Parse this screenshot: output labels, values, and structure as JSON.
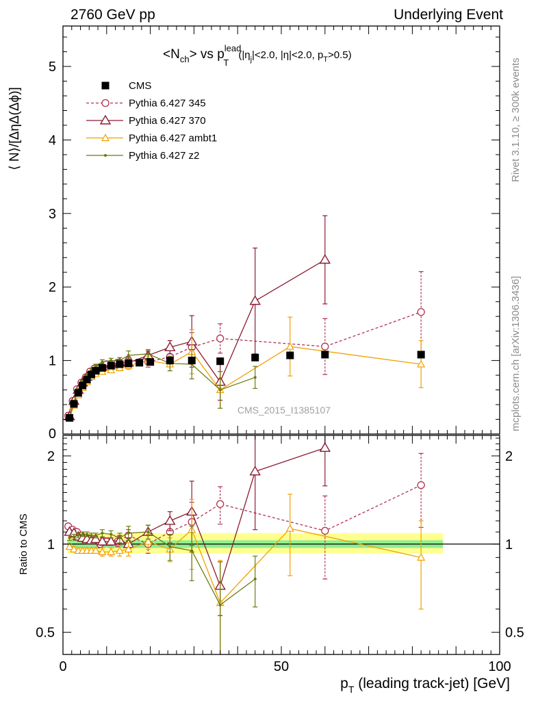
{
  "header": {
    "left": "2760 GeV pp",
    "right": "Underlying Event"
  },
  "plot_title": {
    "main": "<N",
    "main_sub": "ch",
    "mid": "> vs p",
    "mid_sup": "lead",
    "mid_sub": "T",
    "cuts": "(|η",
    "cuts_sub": "j",
    "cuts2": "|<2.0, |η|<2.0, p",
    "cuts_sub2": "T",
    "cuts3": ">0.5)"
  },
  "side_text": {
    "rivet": "Rivet 3.1.10, ≥ 300k events",
    "mcplots": "mcplots.cern.ch [arXiv:1306.3436]"
  },
  "watermark": "CMS_2015_I1385107",
  "axes": {
    "ylabel_main": "⟨ N⟩/[ΔηΔ(Δϕ)]",
    "ylabel_ratio": "Ratio to CMS",
    "xlabel_p": "p",
    "xlabel_sub": "T",
    "xlabel_rest": " (leading track-jet) [GeV]",
    "main_yticks": [
      "1",
      "2",
      "3",
      "4",
      "5"
    ],
    "main_y0_label": "0",
    "ratio_yticks": [
      "0.5",
      "1",
      "2"
    ],
    "xticks": [
      "0",
      "50",
      "100"
    ]
  },
  "chart_data": {
    "type": "scatter",
    "xlim": [
      0,
      100
    ],
    "ylim_main": [
      0,
      5.55
    ],
    "ylim_ratio": [
      0.42,
      2.35
    ],
    "ratio_log": true,
    "legend_position": "top-left",
    "series": [
      {
        "name": "CMS",
        "style": "data",
        "color": "#000000",
        "x": [
          1.5,
          2.5,
          3.5,
          4.5,
          5.5,
          6.5,
          7.5,
          9,
          11,
          13,
          15,
          17.5,
          20,
          24.5,
          29.5,
          36,
          44,
          52,
          60,
          82
        ],
        "y": [
          0.22,
          0.41,
          0.56,
          0.66,
          0.74,
          0.81,
          0.86,
          0.9,
          0.93,
          0.95,
          0.96,
          0.97,
          0.98,
          1.0,
          1.0,
          0.99,
          1.04,
          1.07,
          1.08,
          1.08
        ]
      },
      {
        "name": "Pythia 6.427 345",
        "style": "circle-dashed",
        "color": "#b03050",
        "x": [
          1.2,
          2.2,
          3.2,
          4.2,
          5.2,
          6.2,
          7.2,
          8.5,
          10,
          12.5,
          15,
          19.5,
          24.5,
          29.5,
          36,
          60,
          82
        ],
        "y": [
          0.25,
          0.45,
          0.61,
          0.7,
          0.77,
          0.85,
          0.89,
          0.9,
          0.95,
          0.97,
          1.0,
          0.98,
          1.05,
          1.18,
          1.3,
          1.19,
          1.66
        ],
        "err": [
          0.02,
          0.02,
          0.02,
          0.02,
          0.02,
          0.02,
          0.02,
          0.03,
          0.03,
          0.04,
          0.05,
          0.07,
          0.09,
          0.2,
          0.2,
          0.38,
          0.55
        ],
        "ratio": [
          1.15,
          1.12,
          1.1,
          1.07,
          1.05,
          1.04,
          1.03,
          1.0,
          1.02,
          1.02,
          1.07,
          1.0,
          1.1,
          1.19,
          1.37,
          1.11,
          1.59
        ],
        "ratio_err": [
          0.02,
          0.02,
          0.02,
          0.02,
          0.02,
          0.02,
          0.02,
          0.03,
          0.03,
          0.04,
          0.05,
          0.07,
          0.09,
          0.2,
          0.2,
          0.35,
          0.45
        ]
      },
      {
        "name": "Pythia 6.427 370",
        "style": "triangle-solid",
        "color": "#8b1a30",
        "x": [
          1.5,
          2.5,
          3.5,
          4.5,
          5.5,
          6.5,
          7.5,
          9,
          11,
          13,
          15,
          19.5,
          24.5,
          29.5,
          36,
          44,
          60
        ],
        "y": [
          0.24,
          0.45,
          0.6,
          0.7,
          0.78,
          0.83,
          0.87,
          0.91,
          0.95,
          0.97,
          0.97,
          1.07,
          1.18,
          1.26,
          0.71,
          1.81,
          2.37
        ],
        "err": [
          0.02,
          0.02,
          0.02,
          0.02,
          0.02,
          0.02,
          0.02,
          0.03,
          0.03,
          0.04,
          0.05,
          0.06,
          0.09,
          0.35,
          0.25,
          0.72,
          0.6
        ],
        "ratio": [
          1.1,
          1.09,
          1.06,
          1.05,
          1.04,
          1.03,
          1.04,
          1.02,
          1.02,
          1.03,
          1.0,
          1.1,
          1.2,
          1.29,
          0.72,
          1.77,
          2.13
        ],
        "ratio_err": [
          0.02,
          0.02,
          0.02,
          0.02,
          0.02,
          0.02,
          0.02,
          0.03,
          0.03,
          0.04,
          0.05,
          0.06,
          0.09,
          0.35,
          0.15,
          0.65,
          0.55
        ]
      },
      {
        "name": "Pythia 6.427 ambt1",
        "style": "triangle-small",
        "color": "#f0a000",
        "x": [
          1.5,
          2.5,
          3.5,
          4.5,
          5.5,
          6.5,
          7.5,
          9,
          11,
          13,
          15,
          19.5,
          24.5,
          29.5,
          36,
          52,
          82
        ],
        "y": [
          0.21,
          0.39,
          0.53,
          0.63,
          0.71,
          0.78,
          0.82,
          0.85,
          0.87,
          0.9,
          0.93,
          1.0,
          0.95,
          1.12,
          0.6,
          1.19,
          0.95
        ],
        "err": [
          0.02,
          0.02,
          0.02,
          0.02,
          0.02,
          0.02,
          0.02,
          0.03,
          0.03,
          0.04,
          0.05,
          0.06,
          0.09,
          0.3,
          0.25,
          0.4,
          0.32
        ],
        "ratio": [
          0.98,
          0.96,
          0.95,
          0.95,
          0.95,
          0.95,
          0.95,
          0.94,
          0.94,
          0.95,
          0.96,
          1.02,
          0.96,
          1.12,
          0.63,
          1.13,
          0.9
        ],
        "ratio_err": [
          0.02,
          0.02,
          0.02,
          0.02,
          0.02,
          0.02,
          0.02,
          0.03,
          0.03,
          0.04,
          0.05,
          0.06,
          0.09,
          0.3,
          0.25,
          0.35,
          0.3
        ]
      },
      {
        "name": "Pythia 6.427 z2",
        "style": "dot",
        "color": "#6b7a10",
        "x": [
          1.5,
          2.5,
          3.5,
          4.5,
          5.5,
          6.5,
          7.5,
          9,
          11,
          13,
          15,
          19.5,
          24.5,
          29.5,
          36,
          44
        ],
        "y": [
          0.23,
          0.44,
          0.6,
          0.71,
          0.8,
          0.87,
          0.93,
          0.98,
          1.0,
          1.0,
          1.07,
          1.09,
          0.96,
          0.95,
          0.6,
          0.77
        ],
        "err": [
          0.02,
          0.02,
          0.02,
          0.02,
          0.02,
          0.02,
          0.02,
          0.03,
          0.03,
          0.04,
          0.06,
          0.06,
          0.1,
          0.2,
          0.25,
          0.15
        ],
        "ratio": [
          1.05,
          1.06,
          1.07,
          1.08,
          1.08,
          1.07,
          1.07,
          1.09,
          1.08,
          1.05,
          1.09,
          1.1,
          0.98,
          0.95,
          0.62,
          0.76
        ],
        "ratio_err": [
          0.02,
          0.02,
          0.02,
          0.02,
          0.02,
          0.02,
          0.02,
          0.03,
          0.03,
          0.04,
          0.06,
          0.06,
          0.1,
          0.2,
          0.25,
          0.15
        ]
      }
    ],
    "cms_band": {
      "x": [
        1,
        82
      ],
      "inner_ratio": [
        0.97,
        1.03
      ],
      "outer_ratio": [
        0.93,
        1.09
      ],
      "inner_color": "#90ee90",
      "outer_color": "#ffff90"
    }
  }
}
